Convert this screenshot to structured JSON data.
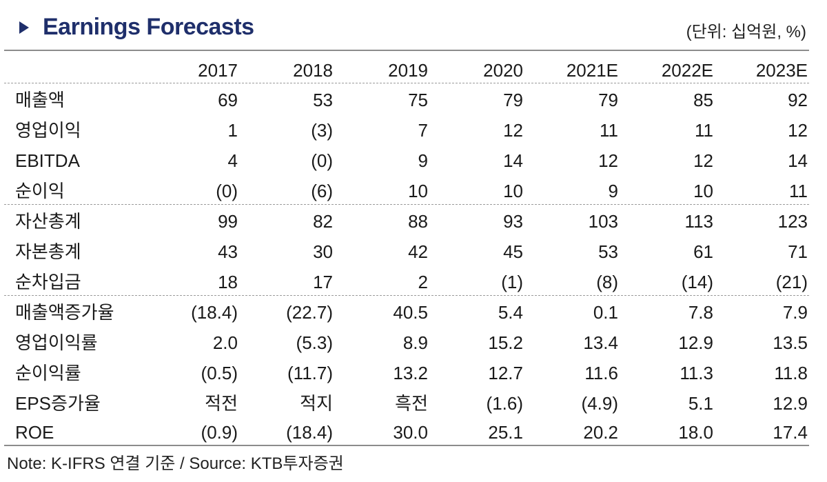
{
  "header": {
    "title": "Earnings Forecasts",
    "unit": "(단위: 십억원, %)"
  },
  "table": {
    "columns": [
      "2017",
      "2018",
      "2019",
      "2020",
      "2021E",
      "2022E",
      "2023E"
    ],
    "rows": [
      {
        "label": "매출액",
        "values": [
          "69",
          "53",
          "75",
          "79",
          "79",
          "85",
          "92"
        ]
      },
      {
        "label": "영업이익",
        "values": [
          "1",
          "(3)",
          "7",
          "12",
          "11",
          "11",
          "12"
        ]
      },
      {
        "label": "EBITDA",
        "values": [
          "4",
          "(0)",
          "9",
          "14",
          "12",
          "12",
          "14"
        ]
      },
      {
        "label": "순이익",
        "values": [
          "(0)",
          "(6)",
          "10",
          "10",
          "9",
          "10",
          "11"
        ]
      },
      {
        "label": "자산총계",
        "values": [
          "99",
          "82",
          "88",
          "93",
          "103",
          "113",
          "123"
        ]
      },
      {
        "label": "자본총계",
        "values": [
          "43",
          "30",
          "42",
          "45",
          "53",
          "61",
          "71"
        ]
      },
      {
        "label": "순차입금",
        "values": [
          "18",
          "17",
          "2",
          "(1)",
          "(8)",
          "(14)",
          "(21)"
        ]
      },
      {
        "label": "매출액증가율",
        "values": [
          "(18.4)",
          "(22.7)",
          "40.5",
          "5.4",
          "0.1",
          "7.8",
          "7.9"
        ]
      },
      {
        "label": "영업이익률",
        "values": [
          "2.0",
          "(5.3)",
          "8.9",
          "15.2",
          "13.4",
          "12.9",
          "13.5"
        ]
      },
      {
        "label": "순이익률",
        "values": [
          "(0.5)",
          "(11.7)",
          "13.2",
          "12.7",
          "11.6",
          "11.3",
          "11.8"
        ]
      },
      {
        "label": "EPS증가율",
        "values": [
          "적전",
          "적지",
          "흑전",
          "(1.6)",
          "(4.9)",
          "5.1",
          "12.9"
        ]
      },
      {
        "label": "ROE",
        "values": [
          "(0.9)",
          "(18.4)",
          "30.0",
          "25.1",
          "20.2",
          "18.0",
          "17.4"
        ]
      }
    ]
  },
  "footer": {
    "note": "Note: K-IFRS 연결 기준 / Source: KTB투자증권"
  }
}
